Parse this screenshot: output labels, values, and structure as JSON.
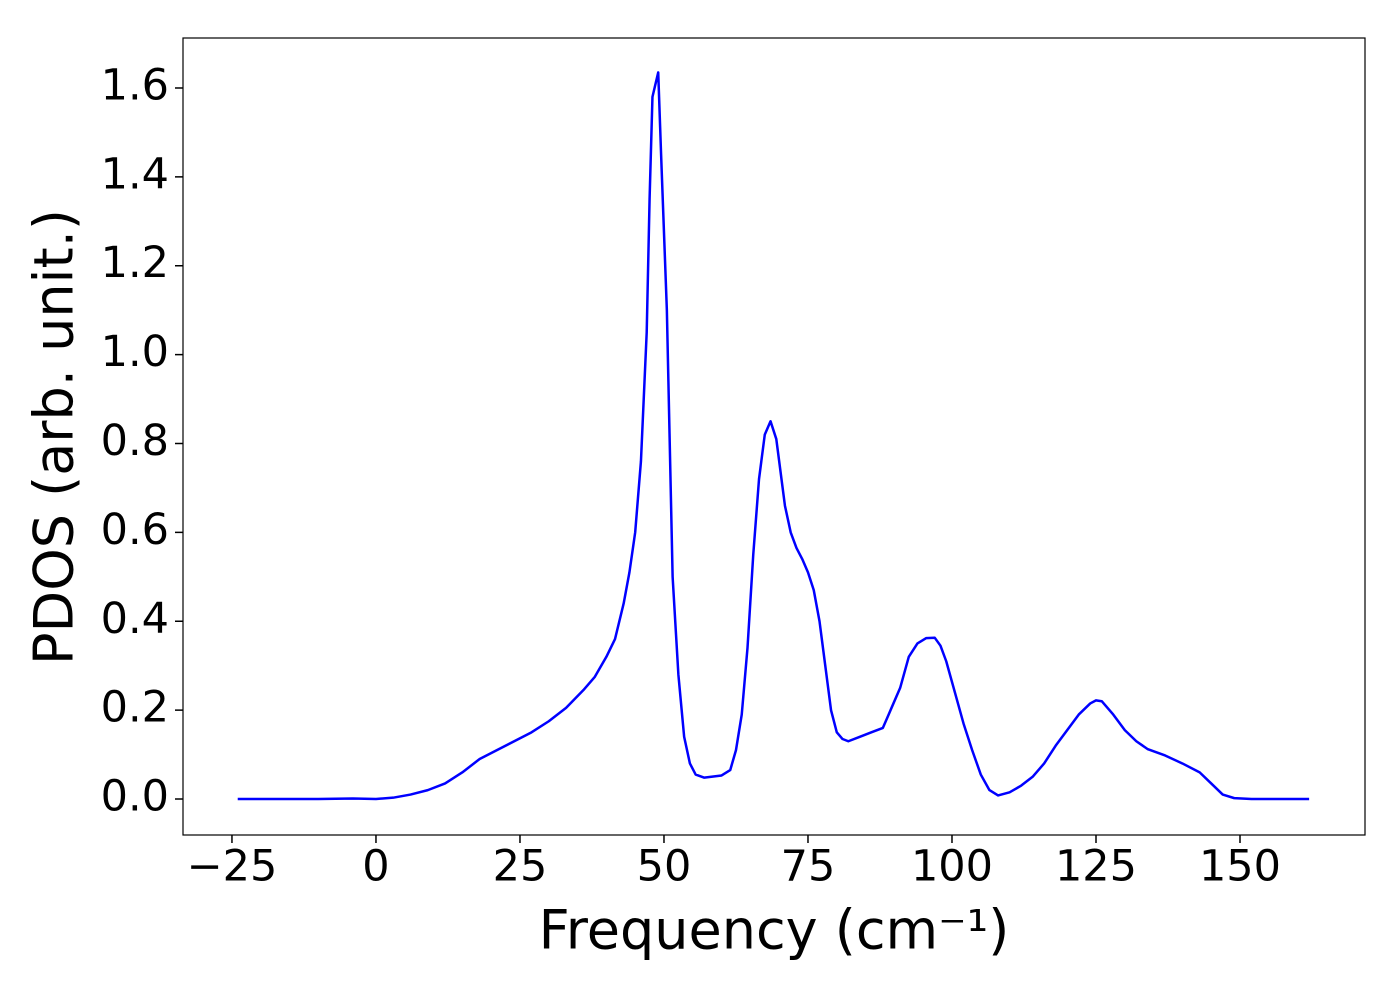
{
  "chart_data": {
    "type": "line",
    "xlabel": "Frequency (cm⁻¹)",
    "ylabel": "PDOS (arb. unit.)",
    "color": "#0000ff",
    "x": [
      -24,
      -10,
      -4,
      0,
      3,
      6,
      9,
      12,
      15,
      18,
      21,
      24,
      27,
      30,
      33,
      36,
      38,
      40,
      41.5,
      43,
      44,
      45,
      46,
      47,
      47.5,
      48,
      49,
      49.5,
      50.5,
      51.5,
      52.5,
      53.5,
      54.5,
      55.5,
      57,
      60,
      61.5,
      62.5,
      63.5,
      64.5,
      65.5,
      66.5,
      67.5,
      68.5,
      69.5,
      71,
      72,
      73,
      74,
      75,
      76,
      77,
      78,
      79,
      80,
      81,
      82,
      84,
      86,
      88,
      89,
      91,
      92.5,
      94,
      95.5,
      97,
      98,
      99,
      100.5,
      102,
      103.5,
      105,
      106.5,
      108,
      110,
      112,
      114,
      116,
      118,
      120,
      122,
      124,
      125,
      126,
      128,
      130,
      132,
      134,
      137,
      140,
      143,
      145,
      147,
      149,
      152,
      162
    ],
    "values": [
      0,
      0,
      0.001,
      0,
      0.003,
      0.01,
      0.02,
      0.035,
      0.06,
      0.09,
      0.11,
      0.13,
      0.15,
      0.175,
      0.205,
      0.245,
      0.275,
      0.32,
      0.36,
      0.44,
      0.51,
      0.6,
      0.76,
      1.05,
      1.35,
      1.58,
      1.635,
      1.45,
      1.1,
      0.5,
      0.28,
      0.14,
      0.08,
      0.055,
      0.048,
      0.053,
      0.065,
      0.11,
      0.19,
      0.34,
      0.55,
      0.72,
      0.82,
      0.85,
      0.81,
      0.66,
      0.6,
      0.565,
      0.54,
      0.51,
      0.47,
      0.4,
      0.3,
      0.2,
      0.15,
      0.135,
      0.13,
      0.14,
      0.15,
      0.16,
      0.19,
      0.25,
      0.32,
      0.35,
      0.362,
      0.363,
      0.345,
      0.31,
      0.24,
      0.17,
      0.11,
      0.055,
      0.02,
      0.008,
      0.015,
      0.03,
      0.05,
      0.08,
      0.12,
      0.155,
      0.19,
      0.215,
      0.222,
      0.22,
      0.19,
      0.155,
      0.13,
      0.112,
      0.098,
      0.08,
      0.06,
      0.035,
      0.01,
      0.002,
      0,
      0
    ],
    "xlim": [
      -33.5,
      171.7
    ],
    "ylim": [
      -0.081,
      1.7125
    ],
    "xticks": [
      {
        "value": -25,
        "label": "−25"
      },
      0,
      25,
      50,
      75,
      100,
      125,
      150
    ],
    "yticks": [
      {
        "value": 0,
        "label": "0.0"
      },
      0.2,
      0.4,
      0.6,
      0.8,
      {
        "value": 1,
        "label": "1.0"
      },
      1.2,
      1.4,
      1.6
    ],
    "grid": false
  }
}
